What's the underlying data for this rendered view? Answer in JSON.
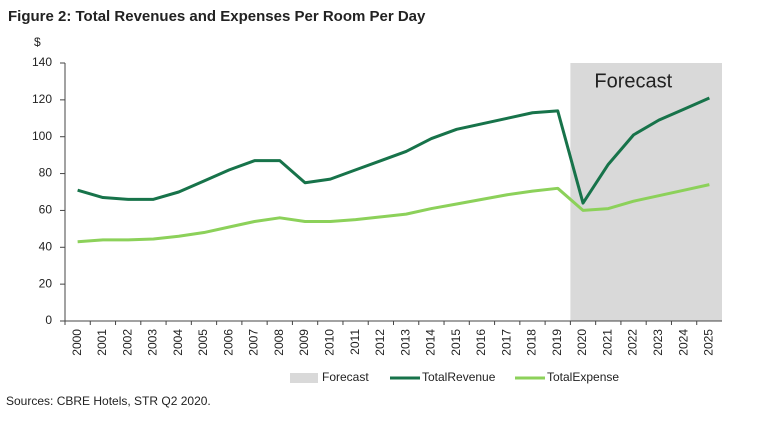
{
  "chart_data": {
    "type": "line",
    "title": "Figure 2: Total Revenues and Expenses Per Room Per Day",
    "y_axis_label": "$",
    "categories": [
      "2000",
      "2001",
      "2002",
      "2003",
      "2004",
      "2005",
      "2006",
      "2007",
      "2008",
      "2009",
      "2010",
      "2011",
      "2012",
      "2013",
      "2014",
      "2015",
      "2016",
      "2017",
      "2018",
      "2019",
      "2020",
      "2021",
      "2022",
      "2023",
      "2024",
      "2025"
    ],
    "series": [
      {
        "name": "TotalRevenue",
        "color": "#17734a",
        "values": [
          71,
          67,
          66,
          66,
          70,
          76,
          82,
          87,
          87,
          75,
          77,
          82,
          87,
          92,
          99,
          104,
          107,
          110,
          113,
          114,
          64,
          85,
          101,
          109,
          115,
          121
        ]
      },
      {
        "name": "TotalExpense",
        "color": "#8cd15a",
        "values": [
          43,
          44,
          44,
          44.5,
          46,
          48,
          51,
          54,
          56,
          54,
          54,
          55,
          56.5,
          58,
          61,
          63.5,
          66,
          68.5,
          70.5,
          72,
          60,
          61,
          65,
          68,
          71,
          74
        ]
      }
    ],
    "shaded_region": {
      "name": "Forecast",
      "label": "Forecast",
      "from": "2020",
      "to": "2025",
      "color": "#d9d9d9"
    },
    "ylim": [
      0,
      140
    ],
    "yticks": [
      0,
      20,
      40,
      60,
      80,
      100,
      120,
      140
    ],
    "grid": false,
    "legend": "bottom",
    "source": "Sources: CBRE Hotels, STR Q2 2020."
  }
}
